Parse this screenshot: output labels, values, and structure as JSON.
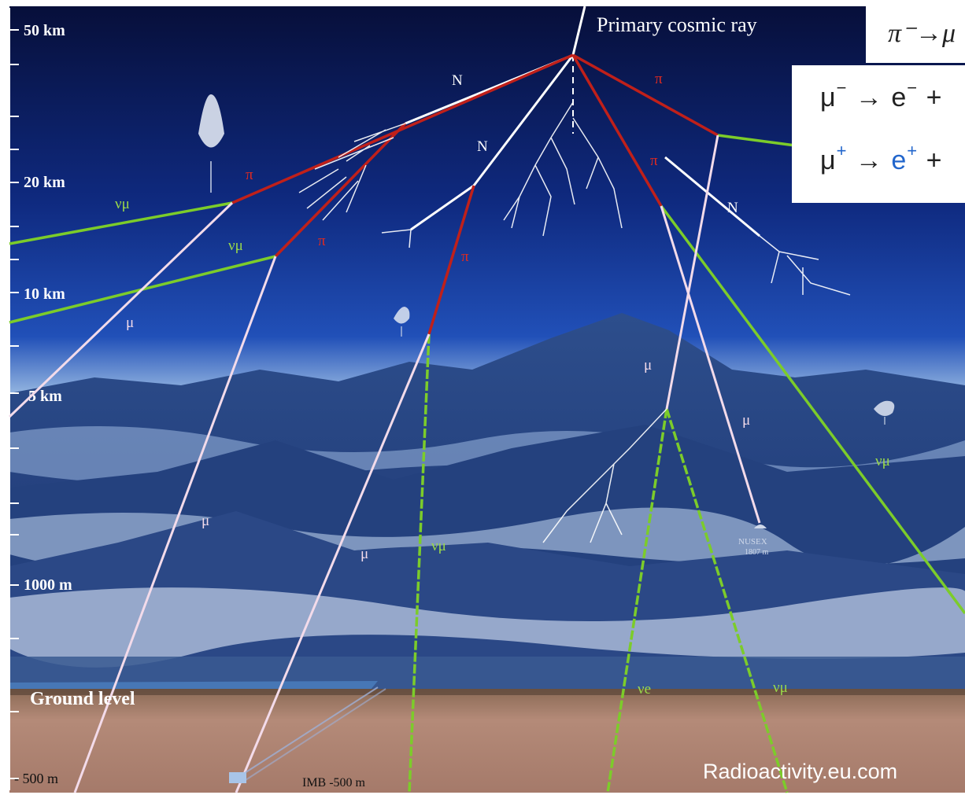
{
  "altitude_scale": [
    {
      "label": "50 km"
    },
    {
      "label": "20 km"
    },
    {
      "label": "10 km"
    },
    {
      "label": "5 km"
    },
    {
      "label": "1000 m"
    },
    {
      "label": "- 500 m"
    }
  ],
  "primary_label": "Primary cosmic ray",
  "particle_labels": {
    "nucleon": "N",
    "pion": "π",
    "muon": "μ",
    "muon_neutrino": "νμ",
    "electron_neutrino": "νe"
  },
  "ground_label": "Ground level",
  "detector_imb": "IMB -500 m",
  "detector_nusex": "NUSEX",
  "detector_nusex_depth": "1807 m",
  "credit": "Radioactivity.eu.com",
  "formulas": {
    "pion_decay": "π⁻→μ",
    "muon_minus": {
      "a": "μ",
      "a_sup": "−",
      "arrow": "→",
      "b": "e",
      "b_sup": "−",
      "plus": "+"
    },
    "muon_plus": {
      "a": "μ",
      "a_sup": "+",
      "arrow": "→",
      "b": "e",
      "b_sup": "+",
      "plus": "+"
    }
  },
  "colors": {
    "sky_top": "#0a1340",
    "sky_mid": "#1a3f9a",
    "horizon": "#c8ddf0",
    "mountain": "#27457f",
    "ground": "#a97f6f",
    "pion_track": "#c0201a",
    "neutrino_track": "#7ccc2a",
    "muon_track": "#f0d8e8",
    "nucleon_track": "#ffffff",
    "formula_accent": "#2266cc"
  }
}
